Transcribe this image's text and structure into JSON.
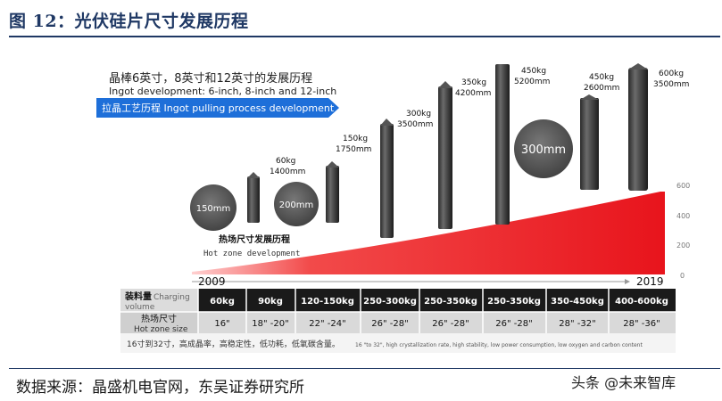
{
  "figure": {
    "title": "图 12：光伏硅片尺寸发展历程",
    "heading_cn": "晶棒6英寸，8英寸和12英寸的发展历程",
    "heading_en": "Ingot development: 6-inch, 8-inch and 12-inch",
    "banner": "拉晶工艺历程 Ingot pulling process development",
    "hot_zone_cn": "热场尺寸发展历程",
    "hot_zone_en": "Hot zone development",
    "year_start": "2009",
    "year_end": "2019",
    "axis_ticks": [
      "600",
      "400",
      "200",
      "0"
    ],
    "size_circles": [
      "150mm",
      "200mm",
      "300mm"
    ],
    "ingots": [
      {
        "weight": "60kg",
        "length": "1400mm"
      },
      {
        "weight": "150kg",
        "length": "1750mm"
      },
      {
        "weight": "300kg",
        "length": "3500mm"
      },
      {
        "weight": "350kg",
        "length": "4200mm"
      },
      {
        "weight": "450kg",
        "length": "5200mm"
      },
      {
        "weight": "450kg",
        "length": "2600mm"
      },
      {
        "weight": "600kg",
        "length": "3500mm"
      }
    ],
    "table": {
      "row1_header_cn": "装料量",
      "row1_header_en1": "Charging",
      "row1_header_en2": "volume",
      "row2_header_cn": "热场尺寸",
      "row2_header_en": "Hot zone size",
      "charging": [
        "60kg",
        "90kg",
        "120-150kg",
        "250-300kg",
        "250-350kg",
        "250-350kg",
        "350-450kg",
        "400-600kg"
      ],
      "hot_zone": [
        "16\"",
        "18\" -20\"",
        "22\" -24\"",
        "26\" -28\"",
        "26\" -28\"",
        "26\" -28\"",
        "28\" -32\"",
        "28\" -36\""
      ]
    },
    "footnote_cn": "16寸到32寸，高成晶率，高稳定性，低功耗，低氧碳含量。",
    "footnote_en": "16 \"to 32\", high crystallization rate, high stability, low power consumption, low oxygen and carbon content"
  },
  "source": "数据来源：晶盛机电官网，东吴证券研究所",
  "watermark": "头条 @未来智库",
  "colors": {
    "title": "#1f3864",
    "banner": "#1e6fd9",
    "wedge": "#e8141c",
    "table_header": "#1a1a1a",
    "table_row1": "#f1f1f1",
    "table_row2": "#d9d9d9",
    "circle": "#5a5a5a"
  }
}
